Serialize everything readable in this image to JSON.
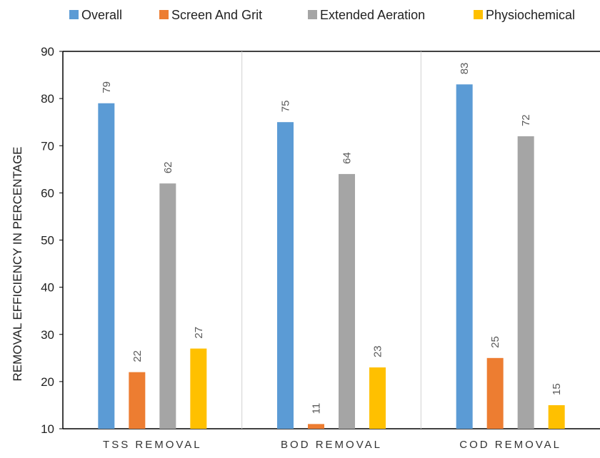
{
  "chart_data": {
    "type": "bar",
    "title": "",
    "xlabel": "",
    "ylabel": "REMOVAL EFFICIENCY IN PERCENTAGE",
    "ylim": [
      10,
      90
    ],
    "yticks": [
      10,
      20,
      30,
      40,
      50,
      60,
      70,
      80,
      90
    ],
    "categories": [
      "TSS REMOVAL",
      "BOD REMOVAL",
      "COD REMOVAL"
    ],
    "series": [
      {
        "name": "Overall",
        "color": "#5B9BD5",
        "values": [
          79,
          75,
          83
        ]
      },
      {
        "name": "Screen And Grit",
        "color": "#ED7D31",
        "values": [
          22,
          11,
          25
        ]
      },
      {
        "name": "Extended Aeration",
        "color": "#A5A5A5",
        "values": [
          62,
          64,
          72
        ]
      },
      {
        "name": "Physiochemical",
        "color": "#FFC000",
        "values": [
          27,
          23,
          15
        ]
      }
    ],
    "legend_position": "top",
    "data_labels": true,
    "grid": false
  }
}
